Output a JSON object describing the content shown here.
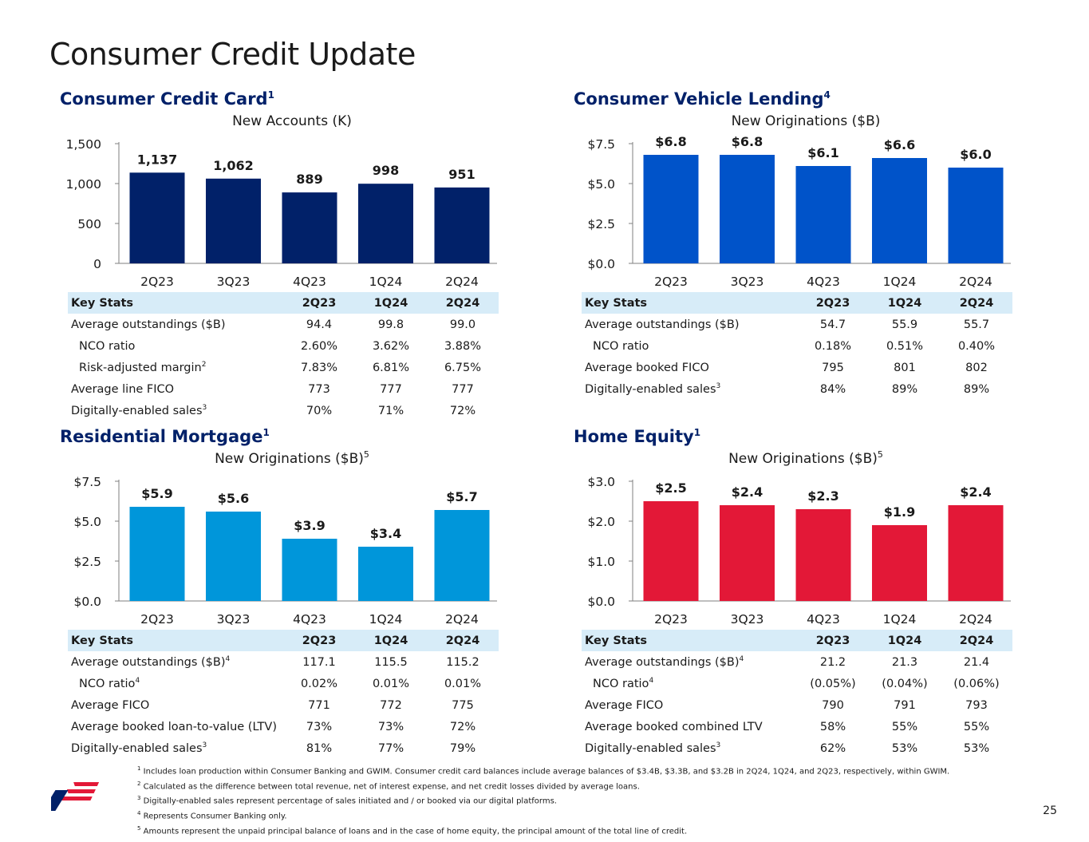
{
  "page": {
    "title": "Consumer Credit Update",
    "number": "25"
  },
  "colors": {
    "cc": "#012169",
    "cvl": "#0053c9",
    "rm": "#0096da",
    "he": "#e31837",
    "axis": "#7f7f7f",
    "header_bg": "#d7ecf8"
  },
  "quadrants": [
    {
      "id": "cc",
      "title": "Consumer Credit Card",
      "title_sup": "1",
      "chart_title": "New Accounts (K)",
      "chart_title_sup": "",
      "stats": {
        "headers": [
          "Key Stats",
          "2Q23",
          "1Q24",
          "2Q24"
        ],
        "rows": [
          {
            "label": "Average outstandings ($B)",
            "sup": "",
            "indent": false,
            "values": [
              "94.4",
              "99.8",
              "99.0"
            ]
          },
          {
            "label": "NCO ratio",
            "sup": "",
            "indent": true,
            "values": [
              "2.60%",
              "3.62%",
              "3.88%"
            ]
          },
          {
            "label": "Risk-adjusted margin",
            "sup": "2",
            "indent": true,
            "values": [
              "7.83%",
              "6.81%",
              "6.75%"
            ]
          },
          {
            "label": "Average line FICO",
            "sup": "",
            "indent": false,
            "values": [
              "773",
              "777",
              "777"
            ]
          },
          {
            "label": "Digitally-enabled sales",
            "sup": "3",
            "indent": false,
            "values": [
              "70%",
              "71%",
              "72%"
            ]
          }
        ]
      }
    },
    {
      "id": "cvl",
      "title": "Consumer Vehicle Lending",
      "title_sup": "4",
      "chart_title": "New Originations ($B)",
      "chart_title_sup": "",
      "stats": {
        "headers": [
          "Key Stats",
          "2Q23",
          "1Q24",
          "2Q24"
        ],
        "rows": [
          {
            "label": "Average outstandings ($B)",
            "sup": "",
            "indent": false,
            "values": [
              "54.7",
              "55.9",
              "55.7"
            ]
          },
          {
            "label": "NCO ratio",
            "sup": "",
            "indent": true,
            "values": [
              "0.18%",
              "0.51%",
              "0.40%"
            ]
          },
          {
            "label": "Average booked FICO",
            "sup": "",
            "indent": false,
            "values": [
              "795",
              "801",
              "802"
            ]
          },
          {
            "label": "Digitally-enabled sales",
            "sup": "3",
            "indent": false,
            "values": [
              "84%",
              "89%",
              "89%"
            ]
          }
        ]
      }
    },
    {
      "id": "rm",
      "title": "Residential Mortgage",
      "title_sup": "1",
      "chart_title": "New Originations ($B)",
      "chart_title_sup": "5",
      "stats": {
        "headers": [
          "Key Stats",
          "2Q23",
          "1Q24",
          "2Q24"
        ],
        "rows": [
          {
            "label": "Average outstandings ($B)",
            "sup": "4",
            "indent": false,
            "values": [
              "117.1",
              "115.5",
              "115.2"
            ]
          },
          {
            "label": "NCO ratio",
            "sup": "4",
            "indent": true,
            "values": [
              "0.02%",
              "0.01%",
              "0.01%"
            ]
          },
          {
            "label": "Average FICO",
            "sup": "",
            "indent": false,
            "values": [
              "771",
              "772",
              "775"
            ]
          },
          {
            "label": "Average booked loan-to-value (LTV)",
            "sup": "",
            "indent": false,
            "values": [
              "73%",
              "73%",
              "72%"
            ]
          },
          {
            "label": "Digitally-enabled sales",
            "sup": "3",
            "indent": false,
            "values": [
              "81%",
              "77%",
              "79%"
            ]
          }
        ]
      }
    },
    {
      "id": "he",
      "title": "Home Equity",
      "title_sup": "1",
      "chart_title": "New Originations ($B)",
      "chart_title_sup": "5",
      "stats": {
        "headers": [
          "Key Stats",
          "2Q23",
          "1Q24",
          "2Q24"
        ],
        "rows": [
          {
            "label": "Average outstandings ($B)",
            "sup": "4",
            "indent": false,
            "values": [
              "21.2",
              "21.3",
              "21.4"
            ]
          },
          {
            "label": "NCO ratio",
            "sup": "4",
            "indent": true,
            "values": [
              "(0.05%)",
              "(0.04%)",
              "(0.06%)"
            ]
          },
          {
            "label": "Average FICO",
            "sup": "",
            "indent": false,
            "values": [
              "790",
              "791",
              "793"
            ]
          },
          {
            "label": "Average booked combined LTV",
            "sup": "",
            "indent": false,
            "values": [
              "58%",
              "55%",
              "55%"
            ]
          },
          {
            "label": "Digitally-enabled sales",
            "sup": "3",
            "indent": false,
            "values": [
              "62%",
              "53%",
              "53%"
            ]
          }
        ]
      }
    }
  ],
  "chart_data": [
    {
      "id": "cc",
      "type": "bar",
      "title": "New Accounts (K)",
      "xlabel": "",
      "ylabel": "",
      "categories": [
        "2Q23",
        "3Q23",
        "4Q23",
        "1Q24",
        "2Q24"
      ],
      "values": [
        1137,
        1062,
        889,
        998,
        951
      ],
      "data_labels": [
        "1,137",
        "1,062",
        "889",
        "998",
        "951"
      ],
      "yticks": [
        0,
        500,
        1000,
        1500
      ],
      "ytick_labels": [
        "0",
        "500",
        "1,000",
        "1,500"
      ],
      "ylim": [
        0,
        1500
      ],
      "grid": false,
      "legend": "none"
    },
    {
      "id": "cvl",
      "type": "bar",
      "title": "New Originations ($B)",
      "xlabel": "",
      "ylabel": "",
      "categories": [
        "2Q23",
        "3Q23",
        "4Q23",
        "1Q24",
        "2Q24"
      ],
      "values": [
        6.8,
        6.8,
        6.1,
        6.6,
        6.0
      ],
      "data_labels": [
        "$6.8",
        "$6.8",
        "$6.1",
        "$6.6",
        "$6.0"
      ],
      "yticks": [
        0,
        2.5,
        5,
        7.5
      ],
      "ytick_labels": [
        "$0.0",
        "$2.5",
        "$5.0",
        "$7.5"
      ],
      "ylim": [
        0,
        7.5
      ],
      "grid": false,
      "legend": "none"
    },
    {
      "id": "rm",
      "type": "bar",
      "title": "New Originations ($B)",
      "xlabel": "",
      "ylabel": "",
      "categories": [
        "2Q23",
        "3Q23",
        "4Q23",
        "1Q24",
        "2Q24"
      ],
      "values": [
        5.9,
        5.6,
        3.9,
        3.4,
        5.7
      ],
      "data_labels": [
        "$5.9",
        "$5.6",
        "$3.9",
        "$3.4",
        "$5.7"
      ],
      "yticks": [
        0,
        2.5,
        5,
        7.5
      ],
      "ytick_labels": [
        "$0.0",
        "$2.5",
        "$5.0",
        "$7.5"
      ],
      "ylim": [
        0,
        7.5
      ],
      "grid": false,
      "legend": "none"
    },
    {
      "id": "he",
      "type": "bar",
      "title": "New Originations ($B)",
      "xlabel": "",
      "ylabel": "",
      "categories": [
        "2Q23",
        "3Q23",
        "4Q23",
        "1Q24",
        "2Q24"
      ],
      "values": [
        2.5,
        2.4,
        2.3,
        1.9,
        2.4
      ],
      "data_labels": [
        "$2.5",
        "$2.4",
        "$2.3",
        "$1.9",
        "$2.4"
      ],
      "yticks": [
        0,
        1,
        2,
        3
      ],
      "ytick_labels": [
        "$0.0",
        "$1.0",
        "$2.0",
        "$3.0"
      ],
      "ylim": [
        0,
        3
      ],
      "grid": false,
      "legend": "none"
    }
  ],
  "footnotes": [
    {
      "sup": "1",
      "text": "Includes loan production within Consumer Banking and GWIM. Consumer credit card balances include average balances of $3.4B, $3.3B, and $3.2B in 2Q24, 1Q24, and 2Q23, respectively, within GWIM."
    },
    {
      "sup": "2",
      "text": "Calculated as the difference between total revenue, net of interest expense, and net credit losses divided by average loans."
    },
    {
      "sup": "3",
      "text": "Digitally-enabled sales represent percentage of sales initiated and / or booked via our digital platforms."
    },
    {
      "sup": "4",
      "text": "Represents Consumer Banking only."
    },
    {
      "sup": "5",
      "text": "Amounts represent the unpaid principal balance of loans and in the case of home equity, the principal amount of the total line of credit."
    }
  ],
  "logo": {
    "icon": "flag-logo-icon"
  }
}
